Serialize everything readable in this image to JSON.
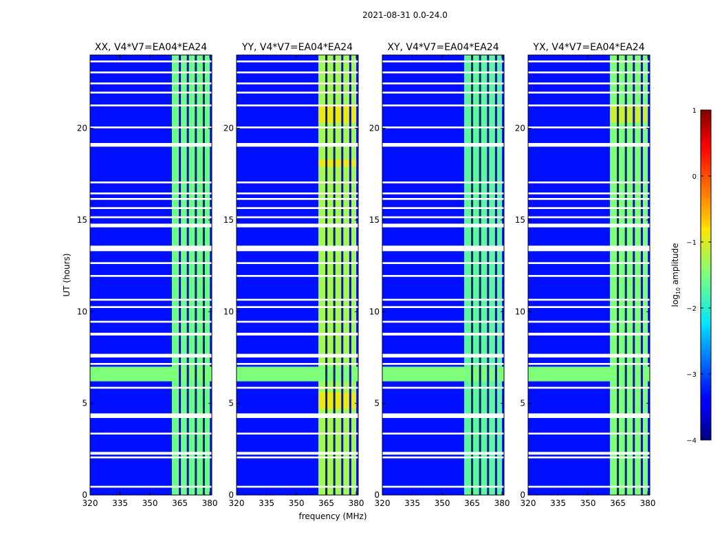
{
  "chart_data": {
    "type": "heatmap",
    "suptitle": "2021-08-31 0.0-24.0",
    "xlabel": "frequency (MHz)",
    "ylabel": "UT (hours)",
    "xlim": [
      320,
      381
    ],
    "ylim": [
      0,
      24
    ],
    "xticks": [
      "320",
      "335",
      "350",
      "365",
      "380"
    ],
    "xtick_values": [
      320,
      335,
      350,
      365,
      380
    ],
    "yticks": [
      "0",
      "5",
      "10",
      "15",
      "20"
    ],
    "ytick_values": [
      0,
      5,
      10,
      15,
      20
    ],
    "panels": [
      {
        "title": "XX, V4*V7=EA04*EA24",
        "band_level": -1.6,
        "extra": []
      },
      {
        "title": "YY, V4*V7=EA04*EA24",
        "band_level": -1.3,
        "extra": [
          [
            4.7,
            5.6,
            -0.9
          ],
          [
            17.9,
            18.3,
            -0.9
          ],
          [
            20.3,
            21.2,
            -0.9
          ]
        ]
      },
      {
        "title": "XY, V4*V7=EA04*EA24",
        "band_level": -1.7,
        "extra": []
      },
      {
        "title": "YX, V4*V7=EA04*EA24",
        "band_level": -1.5,
        "extra": [
          [
            20.3,
            21.2,
            -1.1
          ]
        ]
      }
    ],
    "background_level": -3.3,
    "band_mhz": [
      361,
      380
    ],
    "band_gaps_mhz": [
      365,
      369,
      373,
      377
    ],
    "rfi_event_hours": [
      6.2,
      7.0
    ],
    "rfi_event_level": -1.5,
    "flagged_hours": [
      [
        0.4,
        0.5
      ],
      [
        2.0,
        2.1
      ],
      [
        2.2,
        2.35
      ],
      [
        3.3,
        3.4
      ],
      [
        4.2,
        4.45
      ],
      [
        5.8,
        5.9
      ],
      [
        7.1,
        7.2
      ],
      [
        7.5,
        7.7
      ],
      [
        8.7,
        8.85
      ],
      [
        9.4,
        9.5
      ],
      [
        10.2,
        10.3
      ],
      [
        10.6,
        10.7
      ],
      [
        11.9,
        12.0
      ],
      [
        12.6,
        12.7
      ],
      [
        13.3,
        13.6
      ],
      [
        14.6,
        14.8
      ],
      [
        15.1,
        15.2
      ],
      [
        15.6,
        15.7
      ],
      [
        16.1,
        16.2
      ],
      [
        16.4,
        16.5
      ],
      [
        17.0,
        17.1
      ],
      [
        19.0,
        19.2
      ],
      [
        20.0,
        20.1
      ],
      [
        21.2,
        21.3
      ],
      [
        21.9,
        22.0
      ],
      [
        22.4,
        22.5
      ],
      [
        23.0,
        23.1
      ],
      [
        23.6,
        23.7
      ]
    ],
    "colorbar": {
      "label": "log10 amplitude",
      "label_base": "log",
      "label_sub": "10",
      "label_rest": " amplitude",
      "range": [
        -4,
        1
      ],
      "ticks": [
        "−4",
        "−3",
        "−2",
        "−1",
        "0",
        "1"
      ],
      "tick_values": [
        -4,
        -3,
        -2,
        -1,
        0,
        1
      ],
      "colormap": "jet"
    }
  }
}
